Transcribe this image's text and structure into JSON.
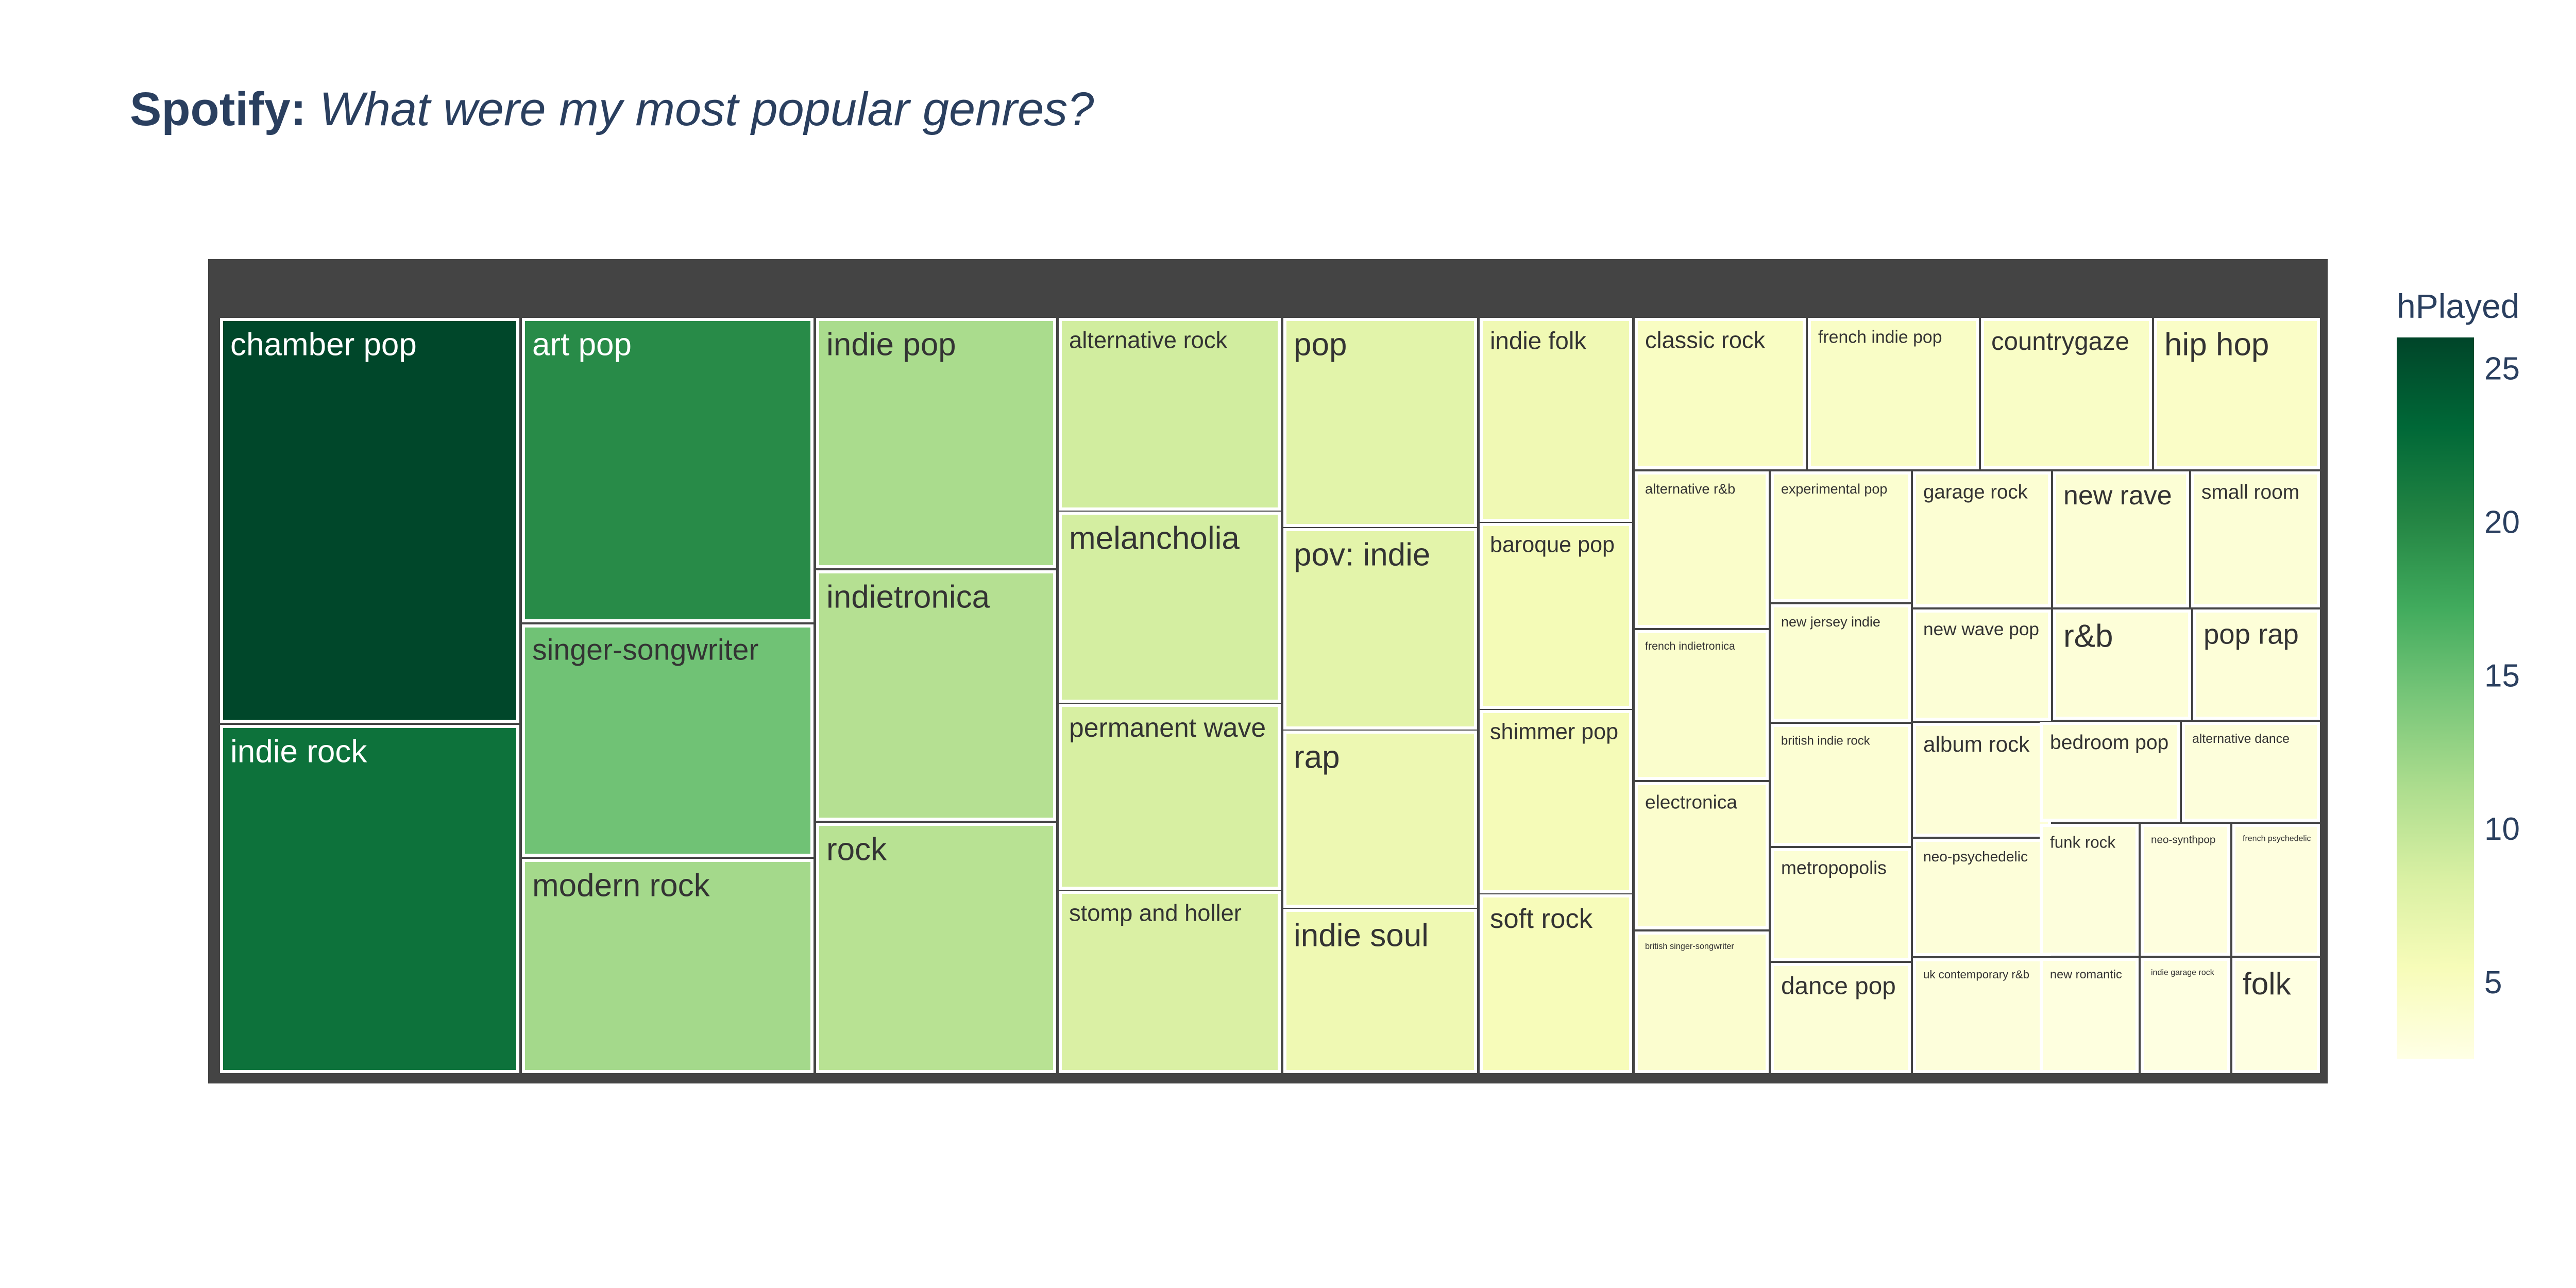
{
  "title": {
    "bold": "Spotify:",
    "italic": "What were my most popular genres?"
  },
  "chart_data": {
    "type": "treemap",
    "color_metric": "hPlayed",
    "colorscale": "YlGn",
    "color_range": [
      2.5,
      26
    ],
    "colorbar": {
      "title": "hPlayed",
      "ticks": [
        "5",
        "10",
        "15",
        "20",
        "25"
      ],
      "tick_values": [
        5,
        10,
        15,
        20,
        25
      ]
    },
    "items": [
      {
        "label": "chamber pop",
        "value": 25.8
      },
      {
        "label": "indie rock",
        "value": 22.0
      },
      {
        "label": "art pop",
        "value": 19.6
      },
      {
        "label": "singer-songwriter",
        "value": 14.7
      },
      {
        "label": "modern rock",
        "value": 11.8
      },
      {
        "label": "indie pop",
        "value": 11.5
      },
      {
        "label": "indietronica",
        "value": 10.8
      },
      {
        "label": "rock",
        "value": 10.6
      },
      {
        "label": "alternative rock",
        "value": 8.9
      },
      {
        "label": "melancholia",
        "value": 8.7
      },
      {
        "label": "permanent wave",
        "value": 8.5
      },
      {
        "label": "stomp and holler",
        "value": 8.3
      },
      {
        "label": "pop",
        "value": 7.5
      },
      {
        "label": "pov: indie",
        "value": 7.4
      },
      {
        "label": "rap",
        "value": 6.4
      },
      {
        "label": "indie soul",
        "value": 6.2
      },
      {
        "label": "indie folk",
        "value": 6.1
      },
      {
        "label": "baroque pop",
        "value": 5.7
      },
      {
        "label": "shimmer pop",
        "value": 5.6
      },
      {
        "label": "soft rock",
        "value": 5.4
      },
      {
        "label": "classic rock",
        "value": 4.8
      },
      {
        "label": "french indie pop",
        "value": 4.6
      },
      {
        "label": "countrygaze",
        "value": 4.6
      },
      {
        "label": "hip hop",
        "value": 4.5
      },
      {
        "label": "alternative r&b",
        "value": 4.3
      },
      {
        "label": "french indietronica",
        "value": 4.2
      },
      {
        "label": "electronica",
        "value": 4.1
      },
      {
        "label": "british singer-songwriter",
        "value": 4.0
      },
      {
        "label": "experimental pop",
        "value": 3.9
      },
      {
        "label": "new jersey indie",
        "value": 3.8
      },
      {
        "label": "british indie rock",
        "value": 3.7
      },
      {
        "label": "metropopolis",
        "value": 3.6
      },
      {
        "label": "dance pop",
        "value": 3.5
      },
      {
        "label": "garage rock",
        "value": 3.7
      },
      {
        "label": "new wave pop",
        "value": 3.5
      },
      {
        "label": "album rock",
        "value": 3.4
      },
      {
        "label": "neo-psychedelic",
        "value": 3.3
      },
      {
        "label": "uk contemporary r&b",
        "value": 3.2
      },
      {
        "label": "new rave",
        "value": 3.6
      },
      {
        "label": "small room",
        "value": 3.5
      },
      {
        "label": "r&b",
        "value": 3.4
      },
      {
        "label": "pop rap",
        "value": 3.4
      },
      {
        "label": "bedroom pop",
        "value": 3.3
      },
      {
        "label": "alternative dance",
        "value": 3.2
      },
      {
        "label": "funk rock",
        "value": 3.1
      },
      {
        "label": "neo-synthpop",
        "value": 3.0
      },
      {
        "label": "french psychedelic",
        "value": 3.0
      },
      {
        "label": "new romantic",
        "value": 2.9
      },
      {
        "label": "indie garage rock",
        "value": 2.8
      },
      {
        "label": "folk",
        "value": 2.8
      }
    ]
  }
}
